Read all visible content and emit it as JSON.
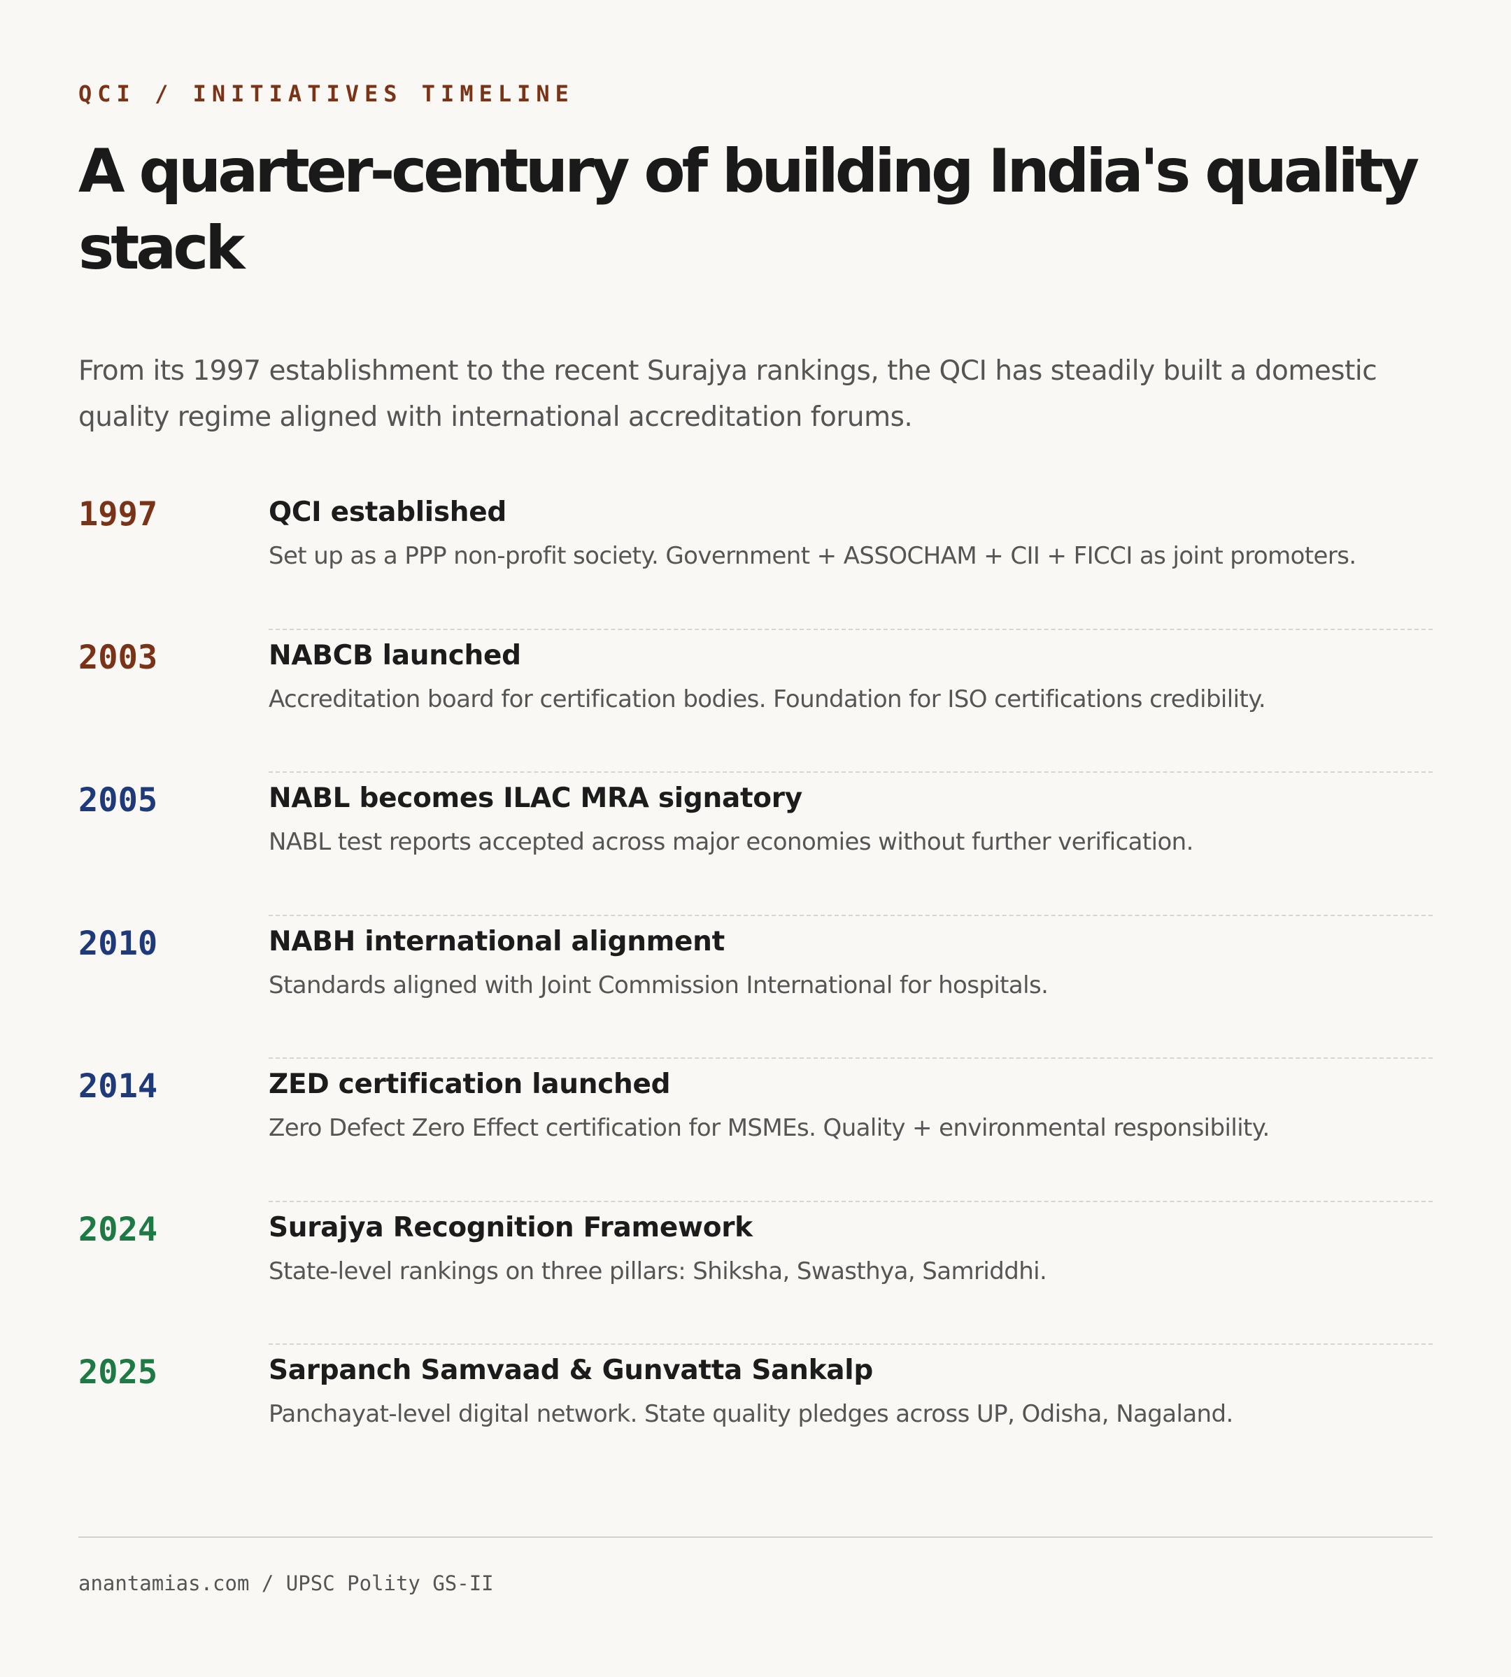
{
  "header": {
    "kicker": "QCI / INITIATIVES TIMELINE",
    "title": "A quarter-century of building India's quality stack",
    "lede": "From its 1997 establishment to the recent Surajya rankings, the QCI has steadily built a domestic quality regime aligned with international accreditation forums."
  },
  "colors": {
    "brown": "#7a3317",
    "navy": "#1f3a7a",
    "green": "#1d7a44"
  },
  "timeline": [
    {
      "year": "1997",
      "color": "#7a3317",
      "title": "QCI established",
      "desc": "Set up as a PPP non-profit society. Government + ASSOCHAM + CII + FICCI as joint promoters."
    },
    {
      "year": "2003",
      "color": "#7a3317",
      "title": "NABCB launched",
      "desc": "Accreditation board for certification bodies. Foundation for ISO certifications credibility."
    },
    {
      "year": "2005",
      "color": "#1f3a7a",
      "title": "NABL becomes ILAC MRA signatory",
      "desc": "NABL test reports accepted across major economies without further verification."
    },
    {
      "year": "2010",
      "color": "#1f3a7a",
      "title": "NABH international alignment",
      "desc": "Standards aligned with Joint Commission International for hospitals."
    },
    {
      "year": "2014",
      "color": "#1f3a7a",
      "title": "ZED certification launched",
      "desc": "Zero Defect Zero Effect certification for MSMEs. Quality + environmental responsibility."
    },
    {
      "year": "2024",
      "color": "#1d7a44",
      "title": "Surajya Recognition Framework",
      "desc": "State-level rankings on three pillars: Shiksha, Swasthya, Samriddhi."
    },
    {
      "year": "2025",
      "color": "#1d7a44",
      "title": "Sarpanch Samvaad & Gunvatta Sankalp",
      "desc": "Panchayat-level digital network. State quality pledges across UP, Odisha, Nagaland."
    }
  ],
  "footer": {
    "text": "anantamias.com / UPSC Polity GS-II"
  }
}
